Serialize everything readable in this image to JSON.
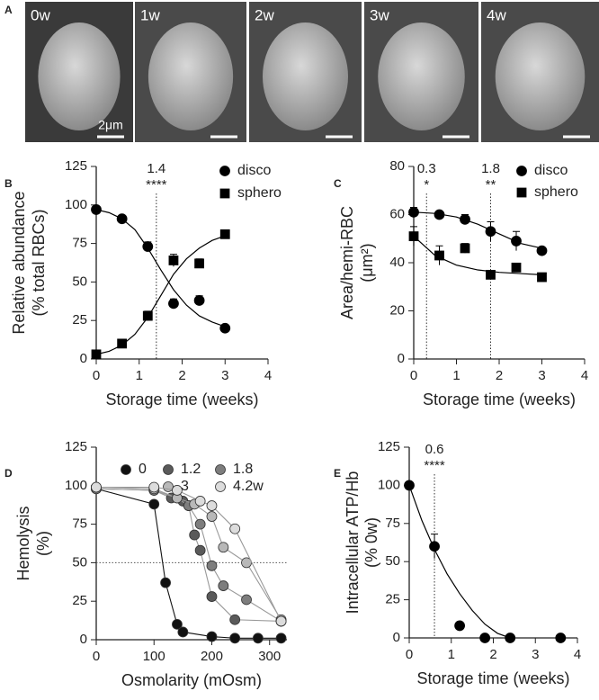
{
  "chart_data": [
    {
      "type": "micrographs",
      "panel": "A",
      "labels": [
        "0w",
        "1w",
        "2w",
        "3w",
        "4w"
      ],
      "scale_label": "2μm"
    },
    {
      "type": "scatter",
      "panel": "B",
      "xlabel": "Storage time (weeks)",
      "ylabel": [
        "Relative abundance",
        "(% total RBCs)"
      ],
      "x": [
        0,
        0.6,
        1.2,
        1.8,
        2.4,
        3
      ],
      "xlim": [
        0,
        4
      ],
      "xticks": [
        0,
        1,
        2,
        3,
        4
      ],
      "ylim": [
        0,
        125
      ],
      "yticks": [
        0,
        25,
        50,
        75,
        100,
        125
      ],
      "annotations": [
        {
          "x": 1.4,
          "stars": "****"
        }
      ],
      "series": [
        {
          "name": "disco",
          "marker": "circle",
          "color": "#000000",
          "values": [
            97,
            91,
            73,
            36,
            38,
            20
          ],
          "errors": [
            1,
            1,
            3,
            3,
            3,
            1
          ],
          "fit_x": [
            0,
            0.3,
            0.6,
            0.9,
            1.2,
            1.5,
            1.8,
            2.1,
            2.4,
            2.7,
            3
          ],
          "fit_values": [
            97,
            95,
            91,
            84,
            72,
            58,
            45,
            35,
            28,
            24,
            21
          ]
        },
        {
          "name": "sphero",
          "marker": "square",
          "color": "#000000",
          "values": [
            3,
            10,
            28,
            64,
            62,
            81
          ],
          "errors": [
            1,
            1,
            3,
            4,
            3,
            1
          ],
          "fit_x": [
            0,
            0.3,
            0.6,
            0.9,
            1.2,
            1.5,
            1.8,
            2.1,
            2.4,
            2.7,
            3
          ],
          "fit_values": [
            3,
            5,
            9,
            16,
            27,
            41,
            55,
            65,
            72,
            77,
            80
          ]
        }
      ]
    },
    {
      "type": "scatter",
      "panel": "C",
      "xlabel": "Storage time (weeks)",
      "ylabel": [
        "Area/hemi-RBC",
        "(μm²)"
      ],
      "x": [
        0,
        0.6,
        1.2,
        1.8,
        2.4,
        3
      ],
      "xlim": [
        0,
        4
      ],
      "xticks": [
        0,
        1,
        2,
        3,
        4
      ],
      "ylim": [
        0,
        80
      ],
      "yticks": [
        0,
        20,
        40,
        60,
        80
      ],
      "annotations": [
        {
          "x": 0.3,
          "stars": "*"
        },
        {
          "x": 1.8,
          "stars": "**"
        }
      ],
      "series": [
        {
          "name": "disco",
          "marker": "circle",
          "color": "#000000",
          "values": [
            61,
            60,
            58,
            53,
            49,
            45
          ],
          "errors": [
            2,
            1,
            2,
            4,
            4,
            1
          ],
          "fit_x": [
            0,
            0.5,
            1,
            1.5,
            2,
            2.5,
            3
          ],
          "fit_values": [
            61,
            60.5,
            59,
            56,
            52,
            48,
            46
          ]
        },
        {
          "name": "sphero",
          "marker": "square",
          "color": "#000000",
          "values": [
            51,
            43,
            46,
            35,
            38,
            34
          ],
          "errors": [
            4,
            4,
            2,
            1,
            1,
            1
          ],
          "fit_x": [
            0,
            0.5,
            1,
            1.5,
            2,
            2.5,
            3
          ],
          "fit_values": [
            51,
            43,
            39,
            37,
            36,
            35.5,
            35
          ]
        }
      ]
    },
    {
      "type": "scatter",
      "panel": "D",
      "xlabel": "Osmolarity (mOsm)",
      "ylabel": [
        "Hemolysis",
        "(%)"
      ],
      "xlim": [
        0,
        330
      ],
      "xticks": [
        0,
        100,
        200,
        300
      ],
      "ylim": [
        0,
        125
      ],
      "yticks": [
        0,
        25,
        50,
        75,
        100,
        125
      ],
      "hline": 50,
      "series": [
        {
          "name": "0",
          "marker": "circle",
          "color": "#111111",
          "x": [
            0,
            100,
            120,
            140,
            150,
            200,
            240,
            280,
            320
          ],
          "values": [
            98,
            88,
            37,
            10,
            5,
            2,
            1,
            1,
            1
          ]
        },
        {
          "name": "1.2",
          "marker": "circle",
          "color": "#5a5a5a",
          "x": [
            0,
            100,
            130,
            150,
            160,
            170,
            180,
            200,
            240,
            320
          ],
          "values": [
            98,
            97,
            92,
            90,
            87,
            68,
            58,
            28,
            13,
            12
          ]
        },
        {
          "name": "1.8",
          "marker": "circle",
          "color": "#7d7d7d",
          "x": [
            0,
            100,
            140,
            160,
            180,
            200,
            220,
            260,
            320
          ],
          "values": [
            98,
            97,
            92,
            87,
            75,
            48,
            35,
            26,
            12
          ]
        },
        {
          "name": "3",
          "marker": "circle",
          "color": "#b8b8b8",
          "x": [
            0,
            100,
            140,
            170,
            200,
            220,
            260,
            320
          ],
          "values": [
            99,
            98,
            92,
            88,
            80,
            60,
            50,
            13
          ]
        },
        {
          "name": "4.2w",
          "marker": "circle",
          "color": "#dcdcdc",
          "x": [
            0,
            100,
            140,
            180,
            200,
            240,
            320
          ],
          "values": [
            99,
            99,
            97,
            90,
            87,
            72,
            12
          ]
        }
      ]
    },
    {
      "type": "scatter",
      "panel": "E",
      "xlabel": "Storage time (weeks)",
      "ylabel": [
        "Intracellular ATP/Hb",
        "(% 0w)"
      ],
      "x": [
        0,
        0.6,
        1.2,
        1.8,
        2.4,
        3.6
      ],
      "xlim": [
        0,
        4
      ],
      "xticks": [
        0,
        1,
        2,
        3,
        4
      ],
      "ylim": [
        0,
        125
      ],
      "yticks": [
        0,
        25,
        50,
        75,
        100,
        125
      ],
      "annotations": [
        {
          "x": 0.6,
          "stars": "****"
        }
      ],
      "series": [
        {
          "marker": "circle",
          "color": "#000000",
          "values": [
            100,
            60,
            8,
            0,
            0,
            0
          ],
          "errors": [
            0,
            8,
            1,
            0,
            0,
            0
          ],
          "fit_x": [
            0,
            0.3,
            0.6,
            0.9,
            1.2,
            1.5,
            1.8,
            2.1,
            2.4
          ],
          "fit_values": [
            100,
            77,
            58,
            42,
            29,
            18,
            9,
            3,
            0
          ]
        }
      ]
    }
  ]
}
